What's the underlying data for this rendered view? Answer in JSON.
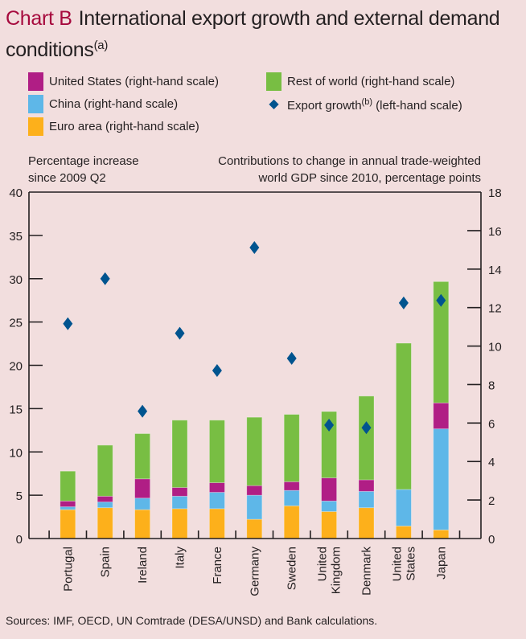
{
  "header": {
    "chart_label": "Chart B",
    "title": "International export growth and external demand conditions",
    "title_note": "(a)"
  },
  "legend": {
    "us": "United States (right-hand scale)",
    "china": "China (right-hand scale)",
    "euro": "Euro area (right-hand scale)",
    "row": "Rest of world (right-hand scale)",
    "export_main": "Export growth",
    "export_note": "(b)",
    "export_suffix": " (left-hand scale)"
  },
  "axis_titles": {
    "left_line1": "Percentage increase",
    "left_line2": "since 2009 Q2",
    "right_line1": "Contributions to change in annual trade-weighted",
    "right_line2": "world GDP since 2010, percentage points"
  },
  "footer": {
    "sources": "Sources:  IMF, OECD, UN Comtrade (DESA/UNSD) and Bank calculations."
  },
  "colors": {
    "background": "#F2DEDE",
    "title_accent": "#A6093D",
    "euro": "#FDB01B",
    "china": "#5EB7E8",
    "us": "#B01E85",
    "row": "#78BE43",
    "export": "#00548F",
    "axis": "#231F20"
  },
  "chart_data": {
    "type": "bar",
    "stacked": true,
    "title": "International export growth and external demand conditions",
    "categories": [
      "Portugal",
      "Spain",
      "Ireland",
      "Italy",
      "France",
      "Germany",
      "Sweden",
      "United Kingdom",
      "Denmark",
      "United States",
      "Japan"
    ],
    "category_label_lines": [
      [
        "Portugal"
      ],
      [
        "Spain"
      ],
      [
        "Ireland"
      ],
      [
        "Italy"
      ],
      [
        "France"
      ],
      [
        "Germany"
      ],
      [
        "Sweden"
      ],
      [
        "United",
        "Kingdom"
      ],
      [
        "Denmark"
      ],
      [
        "United",
        "States"
      ],
      [
        "Japan"
      ]
    ],
    "series": [
      {
        "name": "Euro area (right-hand scale)",
        "key": "euro",
        "axis": "right",
        "values": [
          1.5,
          1.6,
          1.5,
          1.55,
          1.55,
          1.0,
          1.7,
          1.4,
          1.6,
          0.65,
          0.45
        ]
      },
      {
        "name": "China (right-hand scale)",
        "key": "china",
        "axis": "right",
        "values": [
          0.15,
          0.3,
          0.6,
          0.65,
          0.85,
          1.25,
          0.8,
          0.55,
          0.85,
          1.9,
          5.25
        ]
      },
      {
        "name": "United States (right-hand scale)",
        "key": "us",
        "axis": "right",
        "values": [
          0.3,
          0.3,
          1.0,
          0.45,
          0.5,
          0.5,
          0.45,
          1.2,
          0.6,
          0.0,
          1.35
        ]
      },
      {
        "name": "Rest of world (right-hand scale)",
        "key": "row",
        "axis": "right",
        "values": [
          1.55,
          2.65,
          2.35,
          3.5,
          3.25,
          3.55,
          3.5,
          3.45,
          4.35,
          7.6,
          6.3
        ]
      },
      {
        "name": "Export growth (left-hand scale)",
        "key": "export",
        "axis": "left",
        "marker": "diamond",
        "values": [
          24.8,
          30.0,
          14.7,
          23.7,
          19.4,
          33.6,
          20.8,
          13.1,
          12.8,
          27.2,
          27.5
        ]
      }
    ],
    "left_axis": {
      "label": "Percentage increase since 2009 Q2",
      "ylim": [
        0,
        40
      ],
      "ticks": [
        0,
        5,
        10,
        15,
        20,
        25,
        30,
        35,
        40
      ]
    },
    "right_axis": {
      "label": "Contributions to change in annual trade-weighted world GDP since 2010, percentage points",
      "ylim": [
        0,
        18
      ],
      "ticks": [
        0,
        2,
        4,
        6,
        8,
        10,
        12,
        14,
        16,
        18
      ]
    },
    "grid": false,
    "legend_position": "top"
  }
}
